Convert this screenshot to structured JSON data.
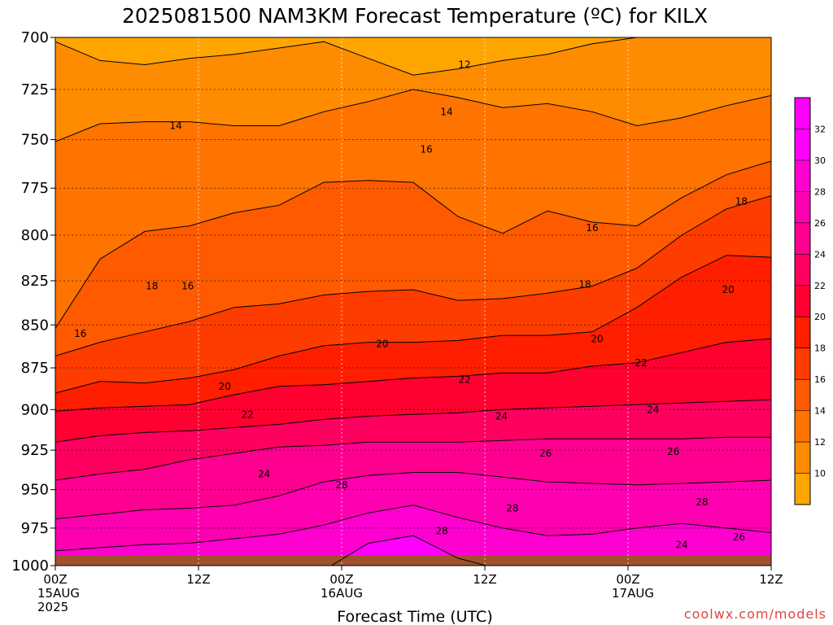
{
  "chart_data": {
    "type": "heatmap",
    "title": "2025081500 NAM3KM Forecast Temperature (ºC) for KILX",
    "xlabel": "Forecast Time (UTC)",
    "ylabel": "",
    "y_scale": "log-pressure",
    "y_inverted": true,
    "ylim": [
      1000,
      700
    ],
    "xlim_hours": [
      0,
      60
    ],
    "y_ticks": [
      {
        "value": 700,
        "label": "700"
      },
      {
        "value": 725,
        "label": "725"
      },
      {
        "value": 750,
        "label": "750"
      },
      {
        "value": 775,
        "label": "775"
      },
      {
        "value": 800,
        "label": "800"
      },
      {
        "value": 825,
        "label": "825"
      },
      {
        "value": 850,
        "label": "850"
      },
      {
        "value": 875,
        "label": "875"
      },
      {
        "value": 900,
        "label": "900"
      },
      {
        "value": 925,
        "label": "925"
      },
      {
        "value": 950,
        "label": "950"
      },
      {
        "value": 975,
        "label": "975"
      },
      {
        "value": 1000,
        "label": "1000"
      }
    ],
    "x_ticks": [
      {
        "hour": 0,
        "lines": [
          "00Z",
          "15AUG",
          "2025"
        ]
      },
      {
        "hour": 12,
        "lines": [
          "12Z"
        ]
      },
      {
        "hour": 24,
        "lines": [
          "00Z",
          "16AUG"
        ]
      },
      {
        "hour": 36,
        "lines": [
          "12Z"
        ]
      },
      {
        "hour": 48,
        "lines": [
          "00Z",
          "17AUG"
        ]
      },
      {
        "hour": 60,
        "lines": [
          "12Z"
        ]
      }
    ],
    "grid": true,
    "colorbar": {
      "placement": "right",
      "levels": [
        10,
        12,
        14,
        16,
        18,
        20,
        22,
        24,
        26,
        28,
        30,
        32
      ],
      "labels": [
        "10",
        "12",
        "14",
        "16",
        "18",
        "20",
        "22",
        "24",
        "26",
        "28",
        "30",
        "32"
      ],
      "colors": [
        "#ffa500",
        "#ff8c00",
        "#ff7300",
        "#ff5a00",
        "#ff3c00",
        "#ff1e00",
        "#ff0030",
        "#ff0060",
        "#ff0090",
        "#ff00b0",
        "#ff00d0",
        "#ff00ff",
        "#ff00ff"
      ]
    },
    "series": [
      {
        "level": 12,
        "p": [
          702,
          711,
          713,
          710,
          708,
          705,
          702,
          710,
          718,
          715,
          711,
          708,
          703,
          700,
          697,
          693,
          690
        ]
      },
      {
        "level": 14,
        "p": [
          751,
          742,
          741,
          741,
          743,
          743,
          736,
          731,
          725,
          729,
          734,
          732,
          736,
          743,
          739,
          733,
          728
        ]
      },
      {
        "level": 16,
        "p": [
          852,
          813,
          798,
          795,
          788,
          784,
          772,
          771,
          772,
          790,
          799,
          787,
          793,
          795,
          780,
          768,
          761
        ]
      },
      {
        "level": 18,
        "p": [
          868,
          860,
          854,
          848,
          840,
          838,
          833,
          831,
          830,
          836,
          835,
          832,
          828,
          818,
          800,
          786,
          779
        ]
      },
      {
        "level": 20,
        "p": [
          890,
          883,
          884,
          881,
          876,
          868,
          862,
          860,
          860,
          859,
          856,
          856,
          854,
          840,
          823,
          811,
          812
        ]
      },
      {
        "level": 22,
        "p": [
          901,
          899,
          898,
          897,
          891,
          886,
          885,
          883,
          881,
          880,
          878,
          878,
          874,
          872,
          866,
          860,
          858
        ]
      },
      {
        "level": 24,
        "p": [
          920,
          916,
          914,
          913,
          911,
          909,
          906,
          904,
          903,
          902,
          900,
          899,
          898,
          897,
          896,
          895,
          894
        ]
      },
      {
        "level": 26,
        "p": [
          944,
          940,
          937,
          931,
          927,
          923,
          922,
          920,
          920,
          920,
          919,
          918,
          918,
          918,
          918,
          917,
          917
        ]
      },
      {
        "level": 28,
        "p": [
          969,
          966,
          963,
          962,
          960,
          954,
          945,
          941,
          939,
          939,
          942,
          945,
          946,
          947,
          946,
          945,
          944
        ]
      },
      {
        "level": 30,
        "p": [
          990,
          988,
          986,
          985,
          982,
          979,
          973,
          965,
          960,
          968,
          975,
          980,
          979,
          975,
          972,
          975,
          978
        ]
      },
      {
        "level": 32,
        "p": [
          1005,
          1005,
          1005,
          1005,
          1005,
          1005,
          1003,
          985,
          980,
          995,
          1005,
          1005,
          1005,
          1005,
          1005,
          1005,
          1005
        ]
      }
    ],
    "contour_labels": [
      {
        "text": "12",
        "hour": 34.3,
        "p": 713
      },
      {
        "text": "14",
        "hour": 10.1,
        "p": 743
      },
      {
        "text": "14",
        "hour": 32.8,
        "p": 736
      },
      {
        "text": "16",
        "hour": 31.1,
        "p": 755
      },
      {
        "text": "16",
        "hour": 11.1,
        "p": 828
      },
      {
        "text": "16",
        "hour": 45.0,
        "p": 796
      },
      {
        "text": "16",
        "hour": 2.1,
        "p": 855
      },
      {
        "text": "18",
        "hour": 8.1,
        "p": 828
      },
      {
        "text": "18",
        "hour": 44.4,
        "p": 827
      },
      {
        "text": "18",
        "hour": 57.5,
        "p": 782
      },
      {
        "text": "20",
        "hour": 27.4,
        "p": 861
      },
      {
        "text": "20",
        "hour": 45.4,
        "p": 858
      },
      {
        "text": "20",
        "hour": 56.4,
        "p": 830
      },
      {
        "text": "20",
        "hour": 14.2,
        "p": 886
      },
      {
        "text": "22",
        "hour": 34.3,
        "p": 882
      },
      {
        "text": "22",
        "hour": 49.1,
        "p": 872
      },
      {
        "text": "22",
        "hour": 16.1,
        "p": 903
      },
      {
        "text": "24",
        "hour": 37.4,
        "p": 904
      },
      {
        "text": "24",
        "hour": 50.1,
        "p": 900
      },
      {
        "text": "24",
        "hour": 17.5,
        "p": 940
      },
      {
        "text": "24",
        "hour": 52.5,
        "p": 986
      },
      {
        "text": "26",
        "hour": 41.1,
        "p": 927
      },
      {
        "text": "26",
        "hour": 51.8,
        "p": 926
      },
      {
        "text": "26",
        "hour": 57.3,
        "p": 981
      },
      {
        "text": "28",
        "hour": 24.0,
        "p": 947
      },
      {
        "text": "28",
        "hour": 38.3,
        "p": 962
      },
      {
        "text": "28",
        "hour": 54.2,
        "p": 958
      },
      {
        "text": "28",
        "hour": 32.4,
        "p": 977
      }
    ],
    "terrain": {
      "color": "#a0522d",
      "surface_p": 993
    }
  },
  "credit": "coolwx.com/models"
}
